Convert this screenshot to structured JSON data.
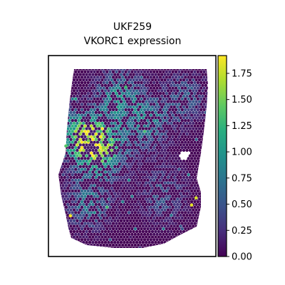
{
  "chart_data": {
    "type": "scatter",
    "title_lines": [
      "UKF259",
      "VKORC1 expression"
    ],
    "xlabel": "",
    "ylabel": "",
    "grid": false,
    "legend": "none",
    "colorbar": {
      "position": "right",
      "colormap": "viridis",
      "range": [
        0,
        1.92
      ],
      "ticks": [
        0.0,
        0.25,
        0.5,
        0.75,
        1.0,
        1.25,
        1.5,
        1.75
      ],
      "tick_labels": [
        "0.00",
        "0.25",
        "0.50",
        "0.75",
        "1.00",
        "1.25",
        "1.50",
        "1.75"
      ]
    },
    "spots": {
      "x_range": [
        0,
        100
      ],
      "y_range": [
        0,
        100
      ],
      "baseline_value": 0.0,
      "hotspots": [
        {
          "x": 15,
          "y": 62,
          "value": 1.1
        },
        {
          "x": 30,
          "y": 55,
          "value": 1.0
        },
        {
          "x": 40,
          "y": 85,
          "value": 0.7
        },
        {
          "x": 60,
          "y": 70,
          "value": 0.6
        },
        {
          "x": 20,
          "y": 25,
          "value": 0.6
        },
        {
          "x": 70,
          "y": 30,
          "value": 0.45
        },
        {
          "x": 85,
          "y": 85,
          "value": 0.45
        }
      ],
      "highlighted_points": [
        {
          "x": 8,
          "y": 18,
          "value": 1.9
        },
        {
          "x": 89,
          "y": 24,
          "value": 1.85
        },
        {
          "x": 92,
          "y": 28,
          "value": 1.8
        },
        {
          "x": 30,
          "y": 56,
          "value": 1.6
        },
        {
          "x": 20,
          "y": 60,
          "value": 1.5
        },
        {
          "x": 5,
          "y": 57,
          "value": 1.4
        },
        {
          "x": 45,
          "y": 90,
          "value": 1.3
        }
      ]
    }
  }
}
